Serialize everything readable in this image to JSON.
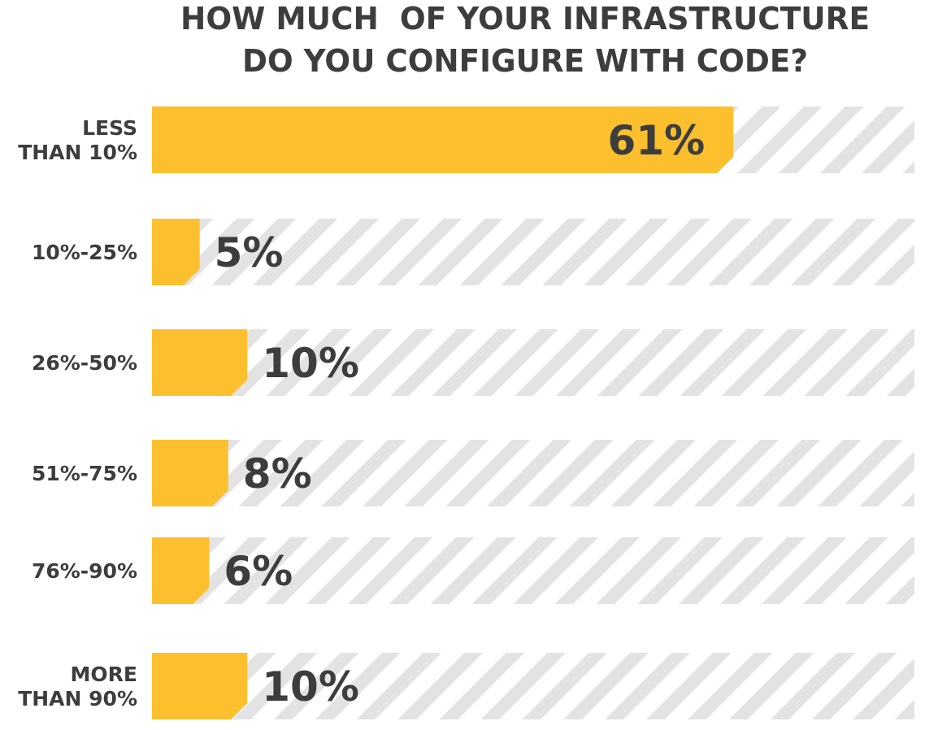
{
  "chart_data": {
    "type": "bar",
    "orientation": "horizontal",
    "title_lines": [
      "HOW MUCH  OF YOUR INFRASTRUCTURE",
      "DO YOU CONFIGURE WITH CODE?"
    ],
    "categories": [
      [
        "LESS",
        "THAN 10%"
      ],
      [
        "10%-25%"
      ],
      [
        "26%-50%"
      ],
      [
        "51%-75%"
      ],
      [
        "76%-90%"
      ],
      [
        "MORE",
        "THAN 90%"
      ]
    ],
    "values": [
      61,
      5,
      10,
      8,
      6,
      10
    ],
    "value_labels": [
      "61%",
      "5%",
      "10%",
      "8%",
      "6%",
      "10%"
    ],
    "xlim": [
      0,
      80
    ],
    "colors": {
      "bar": "#fcc02e",
      "track_stripe": "#e3e3e3",
      "track_bg": "#ffffff",
      "text": "#3d3d3d"
    }
  }
}
